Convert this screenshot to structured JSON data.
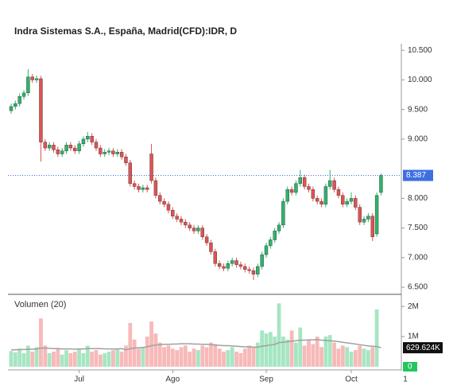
{
  "chart_data": {
    "type": "candlestick",
    "title": "Indra Sistemas S.A., España, Madrid(CFD):IDR, D",
    "categories": [
      null,
      null,
      null,
      null,
      null,
      null,
      null,
      null,
      null,
      null,
      null,
      null,
      null,
      null,
      null,
      null,
      "Jul",
      null,
      null,
      null,
      null,
      null,
      null,
      null,
      null,
      null,
      null,
      null,
      null,
      null,
      null,
      null,
      null,
      null,
      null,
      null,
      null,
      null,
      "Ago",
      null,
      null,
      null,
      null,
      null,
      null,
      null,
      null,
      null,
      null,
      null,
      null,
      null,
      null,
      null,
      null,
      null,
      null,
      null,
      null,
      null,
      "Sep",
      null,
      null,
      null,
      null,
      null,
      null,
      null,
      null,
      null,
      null,
      null,
      null,
      null,
      null,
      null,
      null,
      null,
      null,
      null,
      "Oct",
      null,
      null,
      null,
      null,
      null,
      null,
      null
    ],
    "x_overflow_label": "1",
    "open": [
      9.48,
      9.55,
      9.6,
      9.72,
      9.78,
      10.05,
      10.0,
      10.02,
      8.95,
      8.85,
      8.9,
      8.82,
      8.75,
      8.8,
      8.9,
      8.85,
      8.8,
      8.92,
      9.0,
      9.05,
      8.95,
      8.85,
      8.75,
      8.78,
      8.8,
      8.75,
      8.78,
      8.7,
      8.6,
      8.25,
      8.2,
      8.15,
      8.18,
      8.75,
      8.3,
      8.05,
      7.95,
      7.9,
      7.8,
      7.7,
      7.65,
      7.6,
      7.55,
      7.5,
      7.45,
      7.5,
      7.35,
      7.25,
      7.1,
      6.9,
      6.85,
      6.82,
      6.9,
      6.95,
      6.88,
      6.85,
      6.8,
      6.78,
      6.72,
      6.85,
      7.05,
      7.2,
      7.3,
      7.45,
      7.55,
      7.95,
      8.15,
      8.1,
      8.25,
      8.35,
      8.2,
      8.15,
      8.0,
      7.95,
      7.9,
      8.2,
      8.3,
      8.15,
      8.05,
      7.9,
      7.95,
      8.0,
      7.85,
      7.6,
      7.65,
      7.7,
      7.4,
      8.1
    ],
    "high": [
      9.6,
      9.65,
      9.77,
      9.83,
      10.18,
      10.1,
      10.07,
      10.07,
      9.0,
      8.95,
      8.95,
      8.87,
      8.85,
      8.95,
      8.95,
      8.9,
      8.97,
      9.05,
      9.12,
      9.1,
      9.0,
      8.9,
      8.83,
      8.85,
      8.85,
      8.83,
      8.83,
      8.75,
      8.65,
      8.3,
      8.25,
      8.23,
      8.23,
      8.92,
      8.35,
      8.1,
      8.0,
      7.95,
      7.85,
      7.75,
      7.7,
      7.65,
      7.6,
      7.55,
      7.55,
      7.55,
      7.4,
      7.3,
      7.15,
      6.95,
      6.9,
      6.95,
      7.0,
      7.0,
      6.93,
      6.9,
      6.85,
      6.83,
      6.9,
      7.1,
      7.25,
      7.35,
      7.5,
      7.6,
      8.0,
      8.2,
      8.2,
      8.3,
      8.48,
      8.4,
      8.25,
      8.2,
      8.05,
      8.0,
      8.25,
      8.48,
      8.35,
      8.2,
      8.1,
      8.0,
      8.1,
      8.05,
      7.9,
      7.7,
      7.75,
      7.75,
      8.1,
      8.42
    ],
    "low": [
      9.43,
      9.5,
      9.55,
      9.67,
      9.73,
      9.95,
      9.95,
      8.62,
      8.8,
      8.8,
      8.77,
      8.7,
      8.7,
      8.75,
      8.8,
      8.75,
      8.75,
      8.87,
      8.95,
      8.9,
      8.8,
      8.7,
      8.7,
      8.73,
      8.7,
      8.7,
      8.65,
      8.55,
      8.2,
      8.15,
      8.1,
      8.1,
      8.1,
      8.25,
      8.0,
      7.9,
      7.85,
      7.75,
      7.65,
      7.6,
      7.55,
      7.5,
      7.45,
      7.4,
      7.4,
      7.3,
      7.2,
      7.05,
      6.85,
      6.8,
      6.77,
      6.77,
      6.85,
      6.83,
      6.8,
      6.75,
      6.73,
      6.62,
      6.67,
      6.8,
      7.0,
      7.15,
      7.25,
      7.4,
      7.5,
      7.9,
      8.05,
      8.05,
      8.2,
      8.15,
      8.1,
      7.95,
      7.9,
      7.85,
      7.85,
      8.15,
      8.1,
      8.0,
      7.85,
      7.85,
      7.9,
      7.8,
      7.55,
      7.55,
      7.6,
      7.28,
      7.35,
      8.05
    ],
    "close": [
      9.55,
      9.6,
      9.72,
      9.78,
      10.05,
      10.0,
      10.02,
      8.95,
      8.85,
      8.9,
      8.82,
      8.75,
      8.8,
      8.9,
      8.85,
      8.8,
      8.92,
      9.0,
      9.05,
      8.95,
      8.85,
      8.75,
      8.78,
      8.8,
      8.75,
      8.78,
      8.7,
      8.6,
      8.25,
      8.2,
      8.15,
      8.18,
      8.15,
      8.3,
      8.05,
      7.95,
      7.9,
      7.8,
      7.7,
      7.65,
      7.6,
      7.55,
      7.5,
      7.45,
      7.5,
      7.35,
      7.25,
      7.1,
      6.9,
      6.85,
      6.82,
      6.9,
      6.95,
      6.88,
      6.85,
      6.8,
      6.78,
      6.72,
      6.85,
      7.05,
      7.2,
      7.3,
      7.45,
      7.55,
      7.95,
      8.15,
      8.1,
      8.25,
      8.35,
      8.2,
      8.15,
      8.0,
      7.95,
      7.9,
      8.2,
      8.3,
      8.15,
      8.05,
      7.9,
      7.95,
      8.0,
      7.85,
      7.6,
      7.65,
      7.7,
      7.35,
      8.05,
      8.387
    ],
    "up_color": "#2fb36b",
    "down_color": "#e05252",
    "last_price_color": "#3d6fe0",
    "ylim": [
      6.38,
      10.61
    ],
    "yticks": [
      {
        "value": 6.5,
        "label": "6.500"
      },
      {
        "value": 7,
        "label": "7.000"
      },
      {
        "value": 7.5,
        "label": "7.500"
      },
      {
        "value": 8,
        "label": "8.000"
      },
      {
        "value": 9,
        "label": "9.000"
      },
      {
        "value": 9.5,
        "label": "9.500"
      },
      {
        "value": 10,
        "label": "10.000"
      },
      {
        "value": 10.5,
        "label": "10.500"
      }
    ],
    "volume": {
      "title": "Volumen (20)",
      "values": [
        520000,
        480000,
        600000,
        450000,
        700000,
        500000,
        650000,
        1600000,
        700000,
        450000,
        500000,
        600000,
        400000,
        550000,
        450000,
        500000,
        600000,
        450000,
        700000,
        500000,
        550000,
        400000,
        450000,
        500000,
        550000,
        600000,
        500000,
        700000,
        1450000,
        900000,
        600000,
        650000,
        1000000,
        1500000,
        1100000,
        800000,
        650000,
        700000,
        600000,
        550000,
        650000,
        700000,
        500000,
        600000,
        550000,
        700000,
        650000,
        800000,
        750000,
        600000,
        500000,
        550000,
        650000,
        500000,
        450000,
        600000,
        700000,
        650000,
        800000,
        1200000,
        1100000,
        1150000,
        1000000,
        2100000,
        1000000,
        900000,
        1200000,
        800000,
        1300000,
        700000,
        900000,
        750000,
        1000000,
        650000,
        1000000,
        1050000,
        800000,
        600000,
        700000,
        650000,
        500000,
        550000,
        700000,
        600000,
        550000,
        650000,
        1900000,
        0
      ],
      "ma": [
        560000,
        560000,
        570000,
        570000,
        580000,
        580000,
        590000,
        620000,
        620000,
        610000,
        600000,
        600000,
        590000,
        590000,
        590000,
        580000,
        590000,
        590000,
        600000,
        600000,
        600000,
        600000,
        590000,
        590000,
        590000,
        590000,
        600000,
        560000,
        600000,
        620000,
        630000,
        640000,
        660000,
        700000,
        720000,
        730000,
        740000,
        740000,
        750000,
        750000,
        760000,
        760000,
        760000,
        750000,
        750000,
        740000,
        740000,
        730000,
        720000,
        710000,
        700000,
        700000,
        690000,
        680000,
        670000,
        660000,
        660000,
        650000,
        650000,
        680000,
        700000,
        720000,
        740000,
        800000,
        810000,
        830000,
        850000,
        860000,
        880000,
        880000,
        890000,
        890000,
        900000,
        880000,
        870000,
        860000,
        850000,
        830000,
        810000,
        790000,
        770000,
        750000,
        730000,
        710000,
        690000,
        680000,
        670000,
        629624
      ],
      "ma_last_label": "629.624K",
      "ma_color": "#a0a0a0",
      "ylim": [
        0,
        2320000
      ],
      "yticks": [
        {
          "value": 1000000,
          "label": "1M"
        },
        {
          "value": 2000000,
          "label": "2M"
        }
      ]
    }
  }
}
